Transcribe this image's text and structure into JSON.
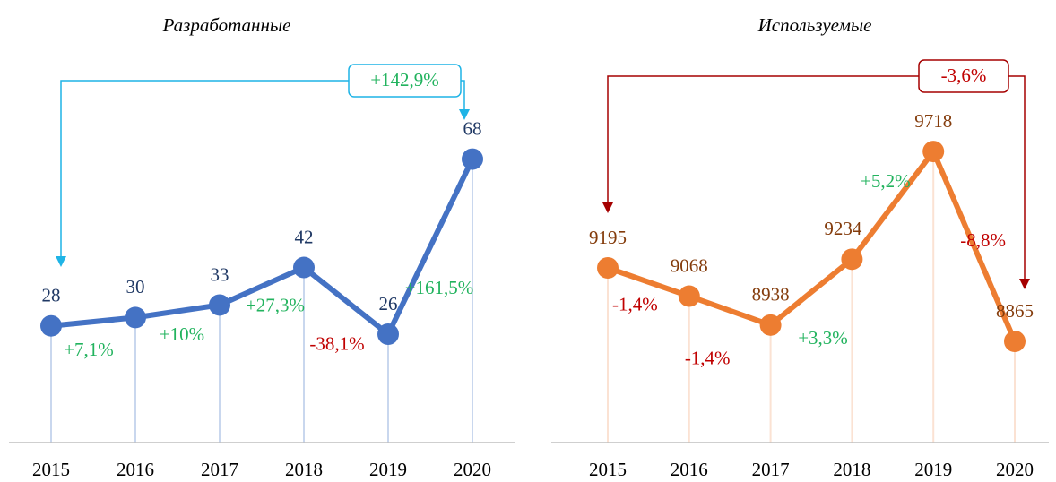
{
  "chart_data": [
    {
      "type": "line",
      "title": "Разработанные",
      "categories": [
        "2015",
        "2016",
        "2017",
        "2018",
        "2019",
        "2020"
      ],
      "values": [
        28,
        30,
        33,
        42,
        26,
        68
      ],
      "change_labels": [
        "+7,1%",
        "+10%",
        "+27,3%",
        "-38,1%",
        "+161,5%"
      ],
      "total_change_label": "+142,9%",
      "color": "#4472c4",
      "label_color": "#1f3864",
      "drop_color": "#c9d7ee",
      "bracket_color": "#1fb4e6",
      "ylim": [
        0,
        75
      ]
    },
    {
      "type": "line",
      "title": "Используемые",
      "categories": [
        "2015",
        "2016",
        "2017",
        "2018",
        "2019",
        "2020"
      ],
      "values": [
        9195,
        9068,
        8938,
        9234,
        9718,
        8865
      ],
      "change_labels": [
        "-1,4%",
        "-1,4%",
        "+3,3%",
        "+5,2%",
        "-8,8%"
      ],
      "total_change_label": "-3,6%",
      "color": "#ed7d31",
      "label_color": "#843c0c",
      "drop_color": "#fbe2d3",
      "bracket_color": "#a50000",
      "ylim": [
        8410,
        9815
      ]
    }
  ]
}
